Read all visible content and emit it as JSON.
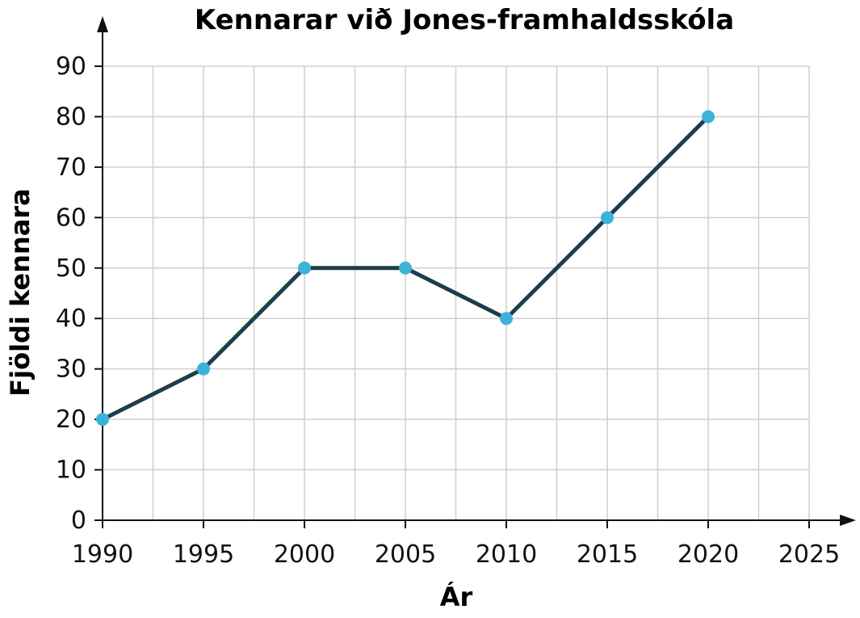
{
  "chart_data": {
    "type": "line",
    "title": "Kennarar við Jones-framhaldsskóla",
    "xlabel": "Ár",
    "ylabel": "Fjöldi kennara",
    "x": [
      1990,
      1995,
      2000,
      2005,
      2010,
      2015,
      2020
    ],
    "series": [
      {
        "values": [
          20,
          30,
          50,
          50,
          40,
          60,
          80
        ]
      }
    ],
    "xlim": [
      1990,
      2025
    ],
    "ylim": [
      0,
      90
    ],
    "x_ticks": [
      "1990",
      "1995",
      "2000",
      "2005",
      "2010",
      "2015",
      "2020",
      "2025"
    ],
    "y_ticks": [
      "0",
      "10",
      "20",
      "30",
      "40",
      "50",
      "60",
      "70",
      "80",
      "90"
    ],
    "grid": true,
    "colors": {
      "line": "#1e3d4c",
      "marker": "#3bb3d9"
    }
  }
}
